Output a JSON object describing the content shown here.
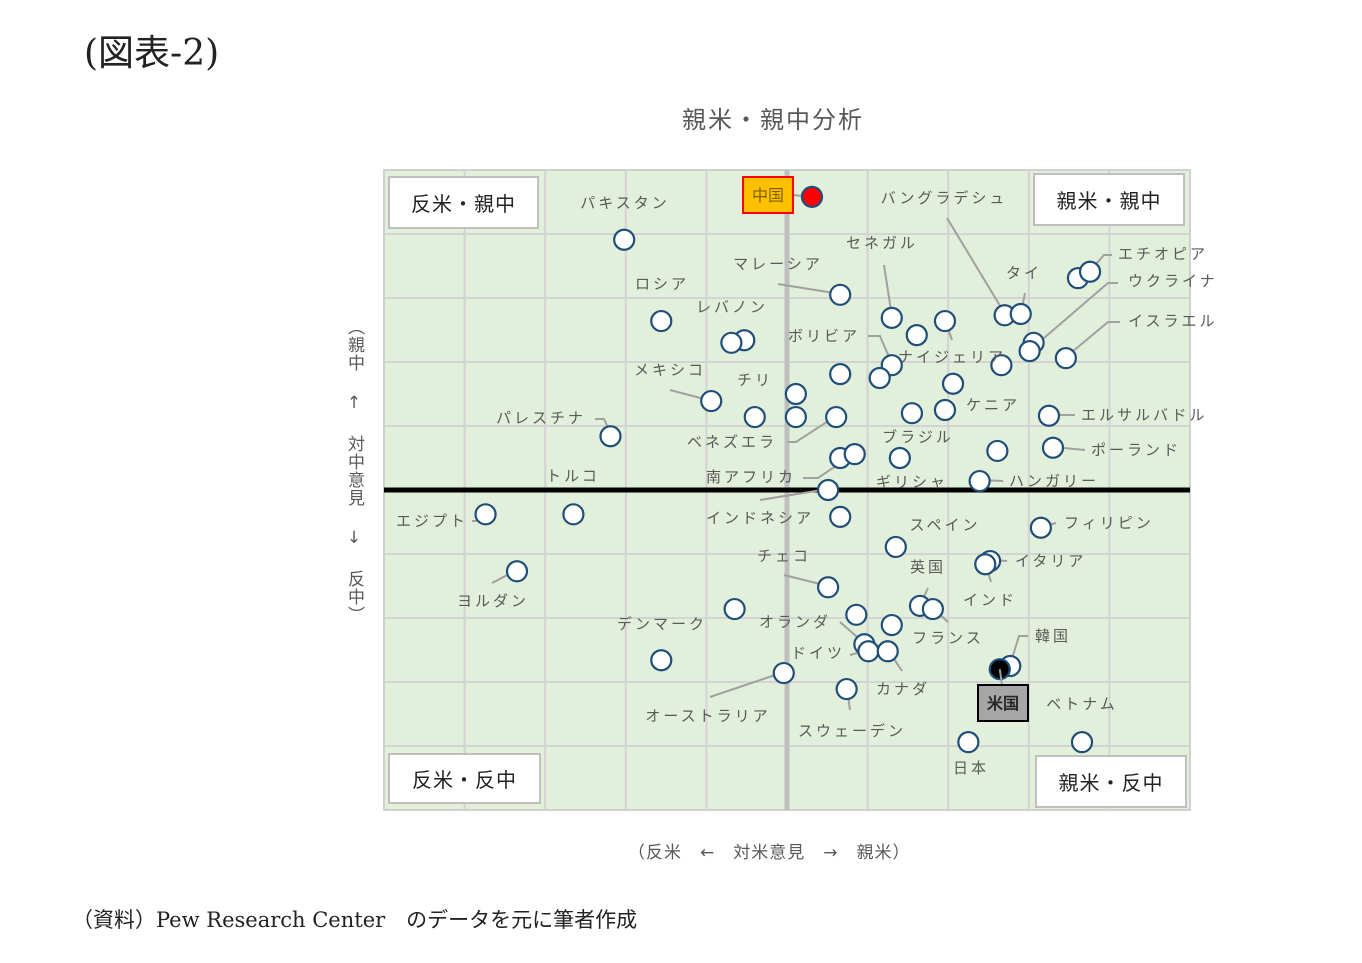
{
  "figure_label": "(図表-2)",
  "source_note": "（資料）Pew Research Center　のデータを元に筆者作成",
  "chart_data": {
    "type": "scatter",
    "title": "親米・親中分析",
    "xlabel": "（反米　←　対米意見　→　親米）",
    "ylabel": "（親中 ↑ 対中意見 ↓ 反中）",
    "xlim": [
      -5,
      5
    ],
    "ylim": [
      -5,
      5
    ],
    "grid": true,
    "quadrants": {
      "top_left": "反米・親中",
      "top_right": "親米・親中",
      "bottom_left": "反米・反中",
      "bottom_right": "親米・反中"
    },
    "colors": {
      "point_fill": "#ffffff",
      "point_stroke": "#1f4e79",
      "china": "#ff0000",
      "usa": "#000000",
      "plot_bg": "#e2efda",
      "china_label_bg": "#ffc000"
    },
    "points": [
      {
        "name": "中国",
        "x": 0.31,
        "y": 4.58,
        "highlight": "china"
      },
      {
        "name": "パキスタン",
        "x": -2.02,
        "y": 3.91
      },
      {
        "name": "ロシア",
        "x": -1.56,
        "y": 2.64
      },
      {
        "name": "レバノン",
        "x": -0.53,
        "y": 2.34
      },
      {
        "name": "",
        "x": -0.69,
        "y": 2.3
      },
      {
        "name": "メキシコ",
        "x": -0.94,
        "y": 1.39
      },
      {
        "name": "パレスチナ",
        "x": -2.19,
        "y": 0.84
      },
      {
        "name": "トルコ",
        "x": -2.65,
        "y": -0.38
      },
      {
        "name": "エジプト",
        "x": -3.74,
        "y": -0.38
      },
      {
        "name": "ヨルダン",
        "x": -3.35,
        "y": -1.27
      },
      {
        "name": "デンマーク",
        "x": -0.65,
        "y": -1.86
      },
      {
        "name": "",
        "x": -1.56,
        "y": -2.66
      },
      {
        "name": "オーストラリア",
        "x": -0.04,
        "y": -2.86
      },
      {
        "name": "チリ",
        "x": -0.4,
        "y": 1.14
      },
      {
        "name": "",
        "x": 0.11,
        "y": 1.5
      },
      {
        "name": "",
        "x": 0.11,
        "y": 1.14
      },
      {
        "name": "ベネズエラ",
        "x": 0.61,
        "y": 1.14
      },
      {
        "name": "",
        "x": 0.66,
        "y": 0.5
      },
      {
        "name": "南アフリカ",
        "x": 0.84,
        "y": 0.56
      },
      {
        "name": "マレーシア",
        "x": 0.66,
        "y": 3.05
      },
      {
        "name": "",
        "x": 0.66,
        "y": 1.81
      },
      {
        "name": "ボリビア",
        "x": 1.3,
        "y": 1.95
      },
      {
        "name": "",
        "x": 1.15,
        "y": 1.75
      },
      {
        "name": "セネガル",
        "x": 1.3,
        "y": 2.69
      },
      {
        "name": "",
        "x": 1.61,
        "y": 2.42
      },
      {
        "name": "ナイジェリア",
        "x": 1.96,
        "y": 2.64
      },
      {
        "name": "バングラデシュ",
        "x": 2.7,
        "y": 2.73
      },
      {
        "name": "タイ",
        "x": 2.9,
        "y": 2.75
      },
      {
        "name": "",
        "x": 3.61,
        "y": 3.31
      },
      {
        "name": "エチオピア",
        "x": 3.76,
        "y": 3.41
      },
      {
        "name": "",
        "x": 3.06,
        "y": 2.3
      },
      {
        "name": "ウクライナ",
        "x": 3.01,
        "y": 2.17
      },
      {
        "name": "イスラエル",
        "x": 3.46,
        "y": 2.06
      },
      {
        "name": "",
        "x": 2.66,
        "y": 1.95
      },
      {
        "name": "",
        "x": 2.06,
        "y": 1.66
      },
      {
        "name": "ケニア",
        "x": 1.96,
        "y": 1.25
      },
      {
        "name": "ブラジル",
        "x": 1.55,
        "y": 1.2
      },
      {
        "name": "ギリシャ",
        "x": 1.4,
        "y": 0.5
      },
      {
        "name": "",
        "x": 2.61,
        "y": 0.61
      },
      {
        "name": "エルサルバドル",
        "x": 3.25,
        "y": 1.16
      },
      {
        "name": "ポーランド",
        "x": 3.3,
        "y": 0.66
      },
      {
        "name": "ハンガリー",
        "x": 2.39,
        "y": 0.14
      },
      {
        "name": "インドネシア",
        "x": 0.51,
        "y": 0.0
      },
      {
        "name": "",
        "x": 0.66,
        "y": -0.42
      },
      {
        "name": "スペイン",
        "x": 1.35,
        "y": -0.89
      },
      {
        "name": "フィリピン",
        "x": 3.15,
        "y": -0.59
      },
      {
        "name": "イタリア",
        "x": 2.52,
        "y": -1.11
      },
      {
        "name": "インド",
        "x": 2.46,
        "y": -1.16
      },
      {
        "name": "英国",
        "x": 1.65,
        "y": -1.81
      },
      {
        "name": "フランス",
        "x": 1.81,
        "y": -1.86
      },
      {
        "name": "チェコ",
        "x": 0.51,
        "y": -1.52
      },
      {
        "name": "",
        "x": 0.86,
        "y": -1.95
      },
      {
        "name": "",
        "x": 1.3,
        "y": -2.11
      },
      {
        "name": "オランダ",
        "x": 0.96,
        "y": -2.41
      },
      {
        "name": "ドイツ",
        "x": 1.01,
        "y": -2.52
      },
      {
        "name": "カナダ",
        "x": 1.25,
        "y": -2.52
      },
      {
        "name": "スウェーデン",
        "x": 0.74,
        "y": -3.11
      },
      {
        "name": "韓国",
        "x": 2.77,
        "y": -2.75
      },
      {
        "name": "米国",
        "x": 2.64,
        "y": -2.8,
        "highlight": "usa"
      },
      {
        "name": "日本",
        "x": 2.25,
        "y": -3.94
      },
      {
        "name": "ベトナム",
        "x": 3.66,
        "y": -3.94
      }
    ]
  }
}
